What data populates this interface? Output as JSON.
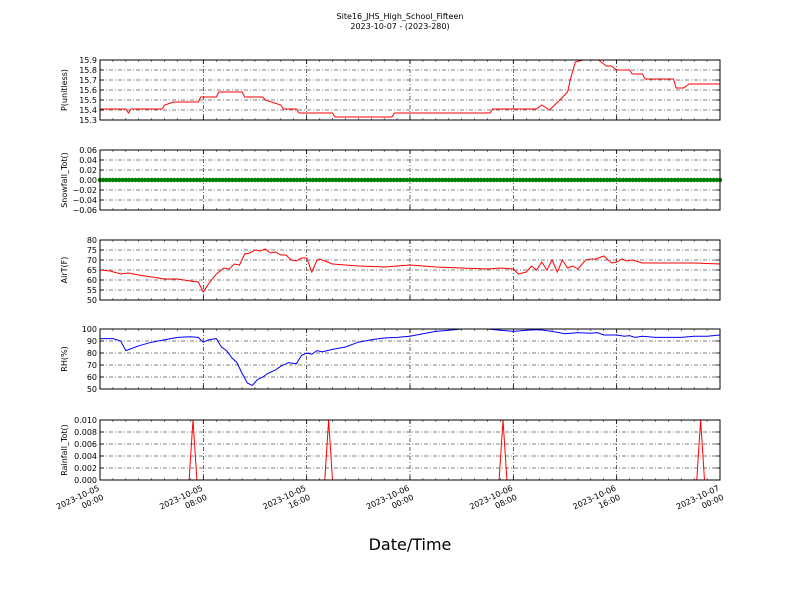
{
  "figure": {
    "title": "Site16_JHS_High_School_Fifteen",
    "subtitle": "2023-10-07 - (2023-280)",
    "xlabel": "Date/Time",
    "x_ticks": [
      "2023-10-05\n00:00",
      "2023-10-05\n08:00",
      "2023-10-05\n16:00",
      "2023-10-06\n00:00",
      "2023-10-06\n08:00",
      "2023-10-06\n16:00",
      "2023-10-07\n00:00"
    ]
  },
  "chart_data": [
    {
      "type": "line",
      "ylabel": "P(unitless)",
      "color": "#ff0000",
      "ylim": [
        15.3,
        15.9
      ],
      "yticks": [
        "15.3",
        "15.4",
        "15.5",
        "15.6",
        "15.7",
        "15.8",
        "15.9"
      ],
      "xlim_hours": [
        0,
        48
      ],
      "grid": true,
      "x": [
        0,
        2.0,
        2.2,
        2.4,
        4.8,
        5.0,
        5.7,
        7.6,
        7.8,
        9.0,
        9.2,
        11.0,
        11.2,
        12.6,
        12.8,
        14.0,
        14.2,
        15.2,
        15.4,
        18.0,
        18.2,
        22.6,
        22.8,
        30.2,
        30.4,
        33.8,
        34.2,
        34.8,
        35.6,
        36.2,
        36.4,
        36.8,
        37.4,
        38.6,
        39.2,
        39.6,
        40.0,
        41.0,
        41.2,
        42.0,
        42.2,
        44.4,
        44.6,
        45.2,
        45.6,
        46.0,
        48.0
      ],
      "values": [
        15.41,
        15.41,
        15.37,
        15.41,
        15.41,
        15.45,
        15.48,
        15.48,
        15.53,
        15.53,
        15.58,
        15.58,
        15.53,
        15.53,
        15.5,
        15.45,
        15.41,
        15.41,
        15.37,
        15.37,
        15.33,
        15.33,
        15.37,
        15.37,
        15.41,
        15.41,
        15.45,
        15.4,
        15.5,
        15.58,
        15.7,
        15.88,
        15.9,
        15.9,
        15.84,
        15.84,
        15.8,
        15.8,
        15.76,
        15.76,
        15.71,
        15.71,
        15.62,
        15.62,
        15.66,
        15.66,
        15.66
      ]
    },
    {
      "type": "scatter",
      "ylabel": "Snowfall_Tot()",
      "color": "#008000",
      "ylim": [
        -0.06,
        0.06
      ],
      "yticks": [
        "−0.06",
        "−0.04",
        "−0.02",
        "0.00",
        "0.02",
        "0.04",
        "0.06"
      ],
      "xlim_hours": [
        0,
        48
      ],
      "grid": true,
      "constant_value": 0.0
    },
    {
      "type": "line",
      "ylabel": "AirT(F)",
      "color": "#ff0000",
      "ylim": [
        50,
        80
      ],
      "yticks": [
        "50",
        "55",
        "60",
        "65",
        "70",
        "75",
        "80"
      ],
      "xlim_hours": [
        0,
        48
      ],
      "grid": true,
      "x": [
        0,
        0.8,
        1.6,
        2.2,
        3.0,
        4.0,
        5.0,
        6.0,
        7.0,
        7.6,
        8.0,
        8.4,
        9.0,
        9.6,
        10.0,
        10.4,
        10.8,
        11.2,
        11.6,
        12.0,
        12.4,
        12.8,
        13.2,
        13.6,
        14.0,
        14.4,
        14.8,
        15.2,
        15.6,
        16.0,
        16.4,
        16.8,
        17.0,
        17.4,
        18.0,
        20.0,
        22.0,
        24.0,
        26.0,
        28.0,
        30.0,
        31.0,
        32.0,
        32.4,
        33.0,
        33.4,
        33.8,
        34.2,
        34.6,
        35.0,
        35.4,
        35.8,
        36.2,
        36.6,
        37.0,
        37.6,
        38.0,
        38.4,
        39.0,
        39.6,
        40.0,
        40.4,
        40.8,
        41.2,
        42.0,
        44.0,
        46.0,
        48.0
      ],
      "values": [
        65,
        64.5,
        63,
        63.5,
        62.5,
        61.5,
        60.5,
        60.5,
        59.5,
        59,
        54,
        58,
        63,
        66,
        65.5,
        68,
        67.5,
        73,
        73.5,
        75,
        74.5,
        75.5,
        73.5,
        74,
        72.5,
        72.5,
        70,
        69.5,
        71,
        71,
        64,
        70,
        70.5,
        69.5,
        68,
        67,
        66.5,
        67.5,
        66.5,
        66,
        65.5,
        66,
        65.5,
        63,
        64,
        67,
        65,
        69,
        65,
        70,
        64,
        70,
        66,
        67,
        65.5,
        70,
        70.5,
        70.5,
        72,
        68.5,
        69,
        70.5,
        69.5,
        70,
        68.5,
        68.5,
        68.5,
        68
      ]
    },
    {
      "type": "line",
      "ylabel": "RH(%)",
      "color": "#0000ff",
      "ylim": [
        50,
        100
      ],
      "yticks": [
        "50",
        "60",
        "70",
        "80",
        "90",
        "100"
      ],
      "xlim_hours": [
        0,
        48
      ],
      "grid": true,
      "x": [
        0,
        1.0,
        1.6,
        2.0,
        3.0,
        4.0,
        5.0,
        6.0,
        7.0,
        7.6,
        8.0,
        8.4,
        9.0,
        9.4,
        9.8,
        10.2,
        10.6,
        11.0,
        11.4,
        11.8,
        12.2,
        12.6,
        13.0,
        13.6,
        14.0,
        14.6,
        15.2,
        15.6,
        16.0,
        16.4,
        16.8,
        17.2,
        17.6,
        18.0,
        19.0,
        20.0,
        21.0,
        22.0,
        23.0,
        24.0,
        25.0,
        26.0,
        27.0,
        28.0,
        30.0,
        31.0,
        32.0,
        33.0,
        34.0,
        35.0,
        36.0,
        37.0,
        38.0,
        38.5,
        39.0,
        40.0,
        40.6,
        41.0,
        41.4,
        42.0,
        43.0,
        44.0,
        45.0,
        46.0,
        47.0,
        48.0
      ],
      "values": [
        92,
        92,
        90,
        82,
        86,
        89,
        91,
        93,
        93.5,
        93,
        89,
        91,
        92,
        85,
        82,
        76,
        72,
        63,
        55,
        53,
        58,
        60,
        63,
        66,
        69,
        72,
        71,
        78,
        80,
        79,
        82,
        81,
        82,
        83,
        85,
        89,
        91,
        92.5,
        93,
        94,
        96,
        98,
        99,
        100,
        100,
        99,
        98,
        99,
        99.5,
        98,
        96,
        97,
        96.5,
        97,
        95,
        95,
        94,
        94.5,
        93,
        94,
        93,
        93,
        93,
        94,
        94,
        95
      ]
    },
    {
      "type": "line",
      "ylabel": "Rainfall_Tot()",
      "color": "#ff0000",
      "ylim": [
        0,
        0.01
      ],
      "yticks": [
        "0.000",
        "0.002",
        "0.004",
        "0.006",
        "0.008",
        "0.010"
      ],
      "xlim_hours": [
        0,
        48
      ],
      "grid": true,
      "x": [
        0,
        6.9,
        7.2,
        7.5,
        17.4,
        17.7,
        18.0,
        30.9,
        31.2,
        31.5,
        46.2,
        46.5,
        46.8,
        48.0
      ],
      "values": [
        0,
        0,
        0.01,
        0,
        0,
        0.01,
        0,
        0,
        0.01,
        0,
        0,
        0.01,
        0,
        0
      ]
    }
  ]
}
